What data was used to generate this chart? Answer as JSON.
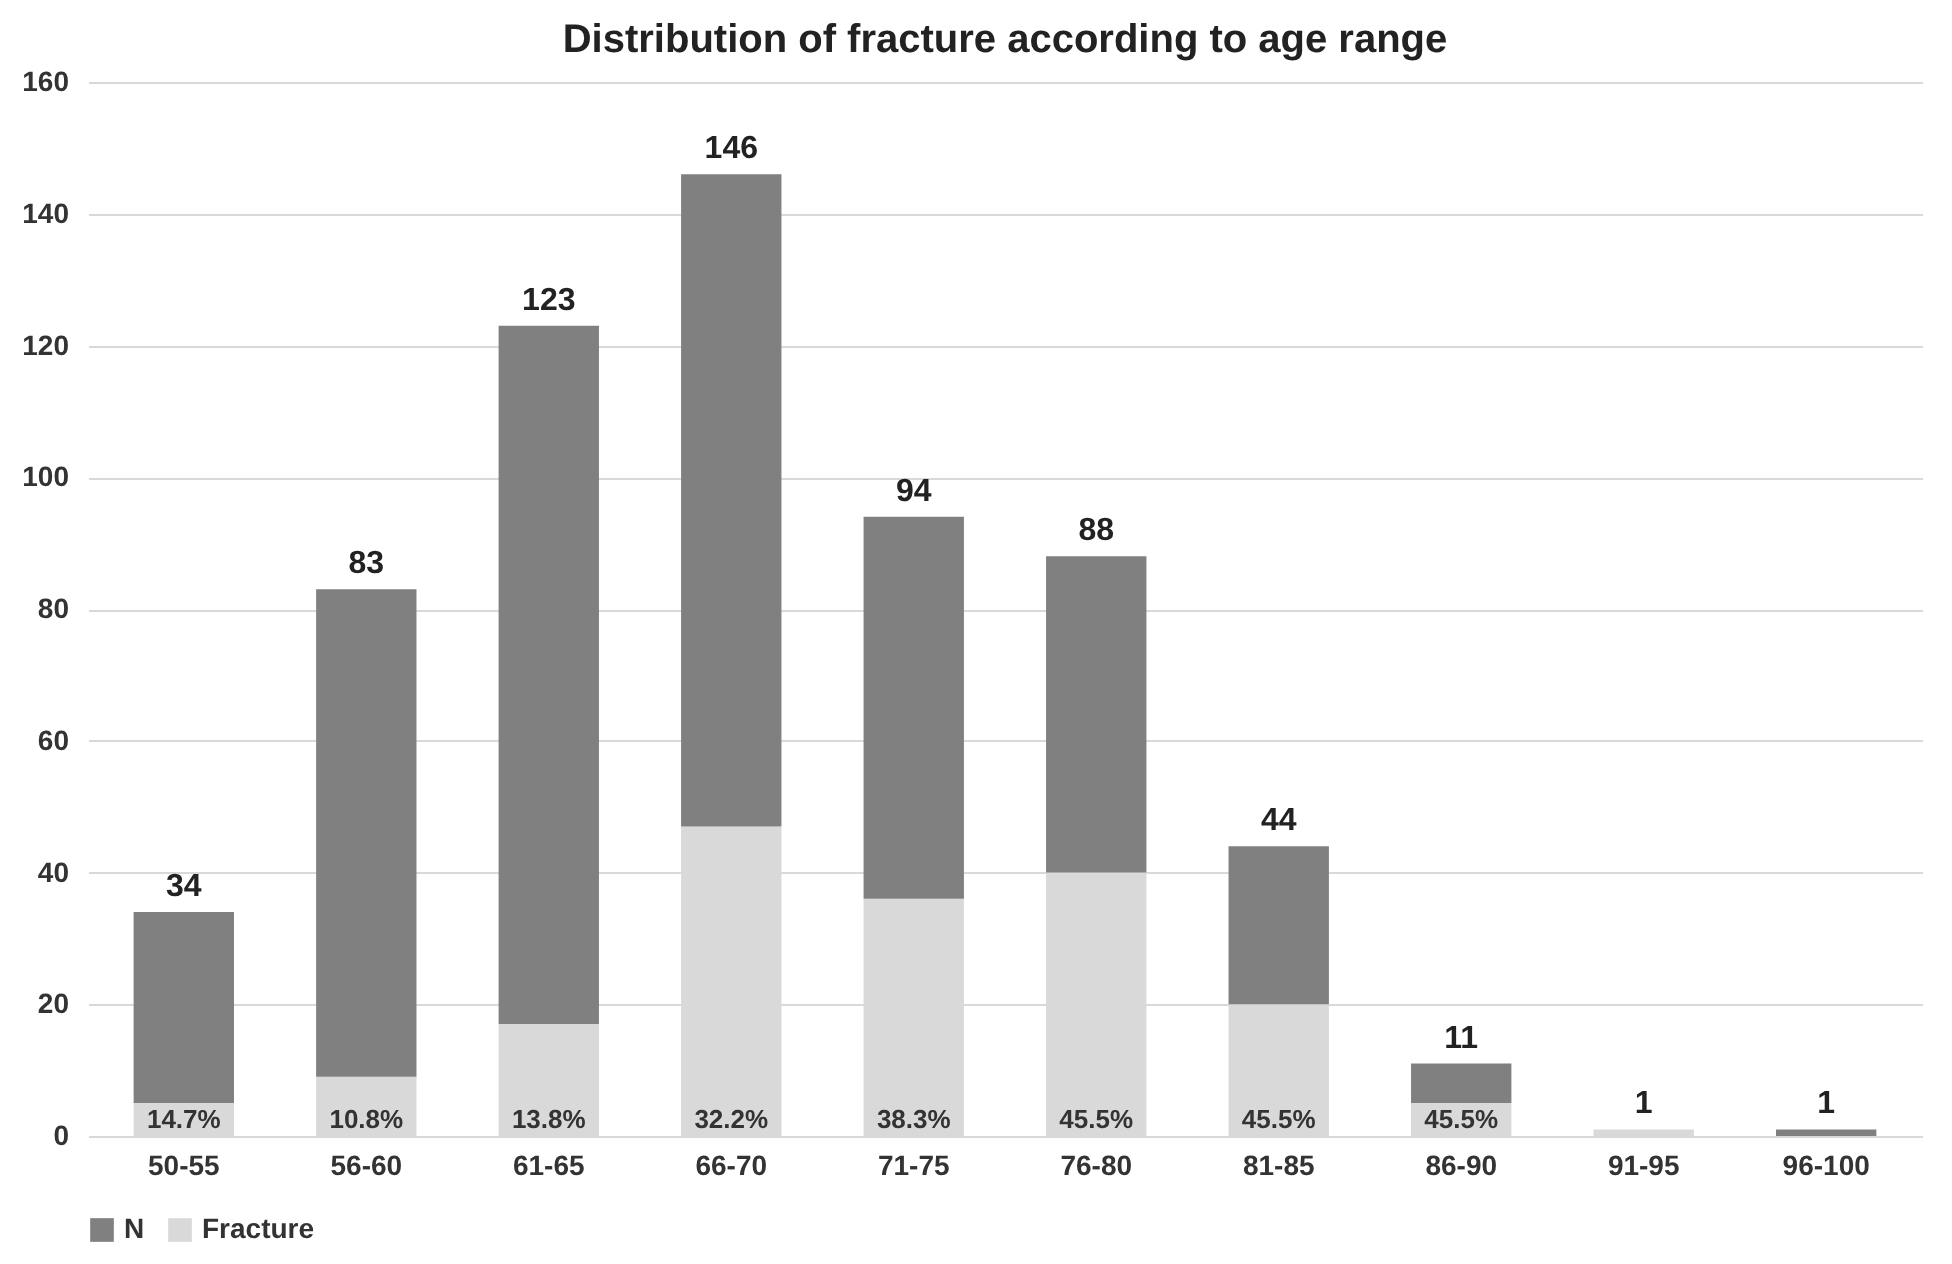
{
  "chart_data": {
    "type": "bar",
    "title": "Distribution of fracture according to age range",
    "categories": [
      "50-55",
      "56-60",
      "61-65",
      "66-70",
      "71-75",
      "76-80",
      "81-85",
      "86-90",
      "91-95",
      "96-100"
    ],
    "stacked": true,
    "series": [
      {
        "name": "Fracture",
        "color": "#d9d9d9",
        "values": [
          5,
          9,
          17,
          47,
          36,
          40,
          20,
          5,
          1,
          0
        ]
      },
      {
        "name": "N",
        "color": "#808080",
        "values": [
          29,
          74,
          106,
          99,
          58,
          48,
          24,
          6,
          0,
          1
        ]
      }
    ],
    "totals": [
      "34",
      "83",
      "123",
      "146",
      "94",
      "88",
      "44",
      "11",
      "1",
      "1"
    ],
    "ylim": [
      0,
      160
    ],
    "yticks": [
      0,
      20,
      40,
      60,
      80,
      100,
      120,
      140,
      160
    ],
    "annotations": [
      {
        "text": "14.7%",
        "x": "50-55",
        "y": 0
      },
      {
        "text": "10.8%",
        "x": "56-60",
        "y": 0
      },
      {
        "text": "13.8%",
        "x": "61-65",
        "y": 0
      },
      {
        "text": "32.2%",
        "x": "66-70",
        "y": 0
      },
      {
        "text": "38.3%",
        "x": "71-75",
        "y": 0
      },
      {
        "text": "45.5%",
        "x": "76-80",
        "y": 0
      },
      {
        "text": "45.5%",
        "x": "81-85",
        "y": 0
      },
      {
        "text": "45.5%",
        "x": "86-90",
        "y": 0
      }
    ],
    "grid": "y",
    "legend": "bottom"
  }
}
